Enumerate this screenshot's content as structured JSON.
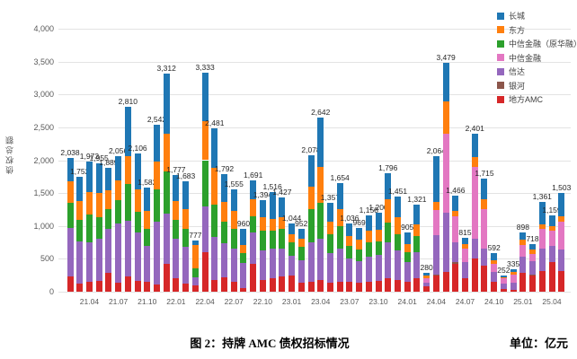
{
  "chart_data": {
    "type": "bar",
    "stacked": true,
    "title": "图 2：持牌 AMC 债权招标情况",
    "unit_label": "单位：亿元",
    "ylabel": "债权总额",
    "ylim": [
      0,
      4000
    ],
    "ytick_labels": [
      "0",
      "500",
      "1,000",
      "1,500",
      "2,000",
      "2,500",
      "3,000",
      "3,500",
      "4,000"
    ],
    "grid": "horizontal",
    "legend_position": "top-right",
    "legend_order_top_down": [
      "长城",
      "东方",
      "中信金融（原华融）",
      "中信金融",
      "信达",
      "银河",
      "地方AMC"
    ],
    "categories": [
      "21.02",
      "21.03",
      "21.04",
      "21.05",
      "21.06",
      "21.07",
      "21.08",
      "21.09",
      "21.10",
      "21.11",
      "21.12",
      "22.01",
      "22.02",
      "22.03",
      "22.04",
      "22.05",
      "22.06",
      "22.07",
      "22.08",
      "22.09",
      "22.10",
      "22.11",
      "22.12",
      "23.01",
      "23.02",
      "23.03",
      "23.04",
      "23.05",
      "23.06",
      "23.07",
      "23.08",
      "23.09",
      "23.10",
      "23.11",
      "23.12",
      "24.01",
      "24.02",
      "24.03",
      "24.04",
      "24.05",
      "24.06",
      "24.07",
      "24.08",
      "24.09",
      "24.10",
      "24.11",
      "24.12",
      "25.01",
      "25.02",
      "25.03",
      "25.04",
      "25.05"
    ],
    "x_tick_labels": [
      "21.04",
      "21.07",
      "21.10",
      "22.01",
      "22.04",
      "22.07",
      "22.10",
      "23.01",
      "23.04",
      "23.07",
      "23.10",
      "24.01",
      "24.04",
      "24.07",
      "24.10",
      "25.01",
      "25.04"
    ],
    "x_tick_start_index": 2,
    "x_tick_every": 3,
    "totals": [
      2038,
      1752,
      1973,
      1955,
      1889,
      2056,
      2810,
      2106,
      1582,
      2542,
      3312,
      1777,
      1683,
      777,
      3333,
      2481,
      1792,
      1555,
      960,
      1691,
      1394,
      1516,
      1427,
      1044,
      952,
      2078,
      2642,
      1357,
      1654,
      1036,
      969,
      1158,
      1200,
      1796,
      1451,
      905,
      1321,
      280,
      2064,
      3479,
      1466,
      815,
      2401,
      1715,
      592,
      252,
      335,
      898,
      718,
      1361,
      1159,
      1503
    ],
    "series_bottom_up": [
      {
        "name": "地方AMC",
        "color": "#d62728",
        "values": [
          230,
          120,
          150,
          160,
          280,
          140,
          230,
          160,
          150,
          110,
          420,
          210,
          120,
          90,
          600,
          180,
          220,
          150,
          60,
          420,
          180,
          200,
          230,
          250,
          130,
          150,
          180,
          140,
          150,
          150,
          130,
          150,
          160,
          200,
          180,
          150,
          200,
          80,
          240,
          300,
          420,
          200,
          500,
          400,
          150,
          40,
          30,
          280,
          250,
          320,
          450,
          320
        ]
      },
      {
        "name": "银河",
        "color": "#8c564b",
        "values": [
          0,
          0,
          0,
          0,
          0,
          0,
          0,
          0,
          0,
          0,
          0,
          0,
          0,
          0,
          0,
          0,
          0,
          0,
          0,
          0,
          0,
          0,
          0,
          0,
          0,
          0,
          0,
          0,
          0,
          0,
          0,
          0,
          0,
          0,
          0,
          0,
          0,
          0,
          20,
          0,
          25,
          0,
          0,
          0,
          0,
          0,
          0,
          0,
          10,
          0,
          0,
          0
        ]
      },
      {
        "name": "信达",
        "color": "#9467bd",
        "values": [
          740,
          640,
          600,
          640,
          680,
          900,
          850,
          740,
          550,
          950,
          770,
          600,
          560,
          130,
          700,
          650,
          520,
          500,
          380,
          480,
          450,
          450,
          430,
          300,
          350,
          600,
          620,
          450,
          500,
          350,
          330,
          380,
          400,
          550,
          450,
          300,
          400,
          50,
          600,
          900,
          300,
          250,
          300,
          250,
          150,
          80,
          100,
          250,
          200,
          330,
          250,
          320
        ]
      },
      {
        "name": "中信金融",
        "color": "#e377c2",
        "values": [
          0,
          0,
          0,
          0,
          0,
          0,
          0,
          0,
          0,
          0,
          0,
          0,
          0,
          0,
          0,
          0,
          0,
          0,
          0,
          0,
          0,
          0,
          0,
          0,
          0,
          0,
          0,
          0,
          0,
          0,
          0,
          0,
          0,
          0,
          0,
          0,
          0,
          80,
          380,
          1200,
          400,
          200,
          1100,
          600,
          120,
          80,
          130,
          180,
          120,
          300,
          230,
          430
        ]
      },
      {
        "name": "中信金融（原华融）",
        "color": "#2ca02c",
        "values": [
          380,
          330,
          420,
          330,
          300,
          350,
          560,
          320,
          250,
          500,
          640,
          280,
          280,
          130,
          700,
          500,
          320,
          300,
          150,
          250,
          300,
          280,
          300,
          200,
          200,
          500,
          550,
          280,
          350,
          200,
          180,
          220,
          200,
          300,
          250,
          150,
          250,
          0,
          0,
          0,
          0,
          0,
          0,
          0,
          0,
          0,
          0,
          0,
          0,
          0,
          0,
          0
        ]
      },
      {
        "name": "东方",
        "color": "#ff7f0e",
        "values": [
          330,
          290,
          350,
          370,
          280,
          300,
          420,
          330,
          280,
          420,
          570,
          290,
          300,
          360,
          600,
          550,
          300,
          280,
          120,
          250,
          200,
          180,
          170,
          130,
          120,
          350,
          550,
          200,
          250,
          150,
          150,
          180,
          180,
          350,
          250,
          120,
          180,
          30,
          120,
          500,
          90,
          80,
          150,
          150,
          60,
          22,
          45,
          80,
          58,
          80,
          60,
          70
        ]
      },
      {
        "name": "长城",
        "color": "#1f77b4",
        "values": [
          358,
          372,
          453,
          455,
          349,
          366,
          750,
          556,
          352,
          562,
          912,
          397,
          423,
          67,
          733,
          601,
          432,
          325,
          250,
          291,
          264,
          406,
          297,
          164,
          152,
          478,
          742,
          287,
          404,
          186,
          179,
          228,
          260,
          396,
          321,
          185,
          291,
          40,
          704,
          579,
          231,
          85,
          351,
          315,
          112,
          30,
          30,
          108,
          80,
          331,
          169,
          363
        ]
      }
    ]
  }
}
